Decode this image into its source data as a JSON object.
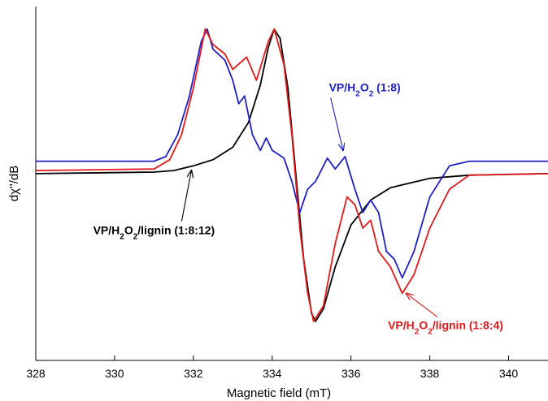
{
  "chart_data": {
    "type": "line",
    "xlabel": "Magnetic field (mT)",
    "ylabel": "dχ''/dB",
    "xlim": [
      328,
      341
    ],
    "ylim": [
      -1,
      1
    ],
    "x_ticks": [
      "328",
      "330",
      "332",
      "334",
      "336",
      "338",
      "340"
    ],
    "y_ticks_shown": false,
    "grid": false,
    "legend": "none",
    "colors": {
      "black": "#000000",
      "blue": "#1f1fc8",
      "red": "#e31a1a"
    },
    "series": [
      {
        "color": "#000000",
        "points": [
          [
            328.0,
            0.05
          ],
          [
            331.0,
            0.06
          ],
          [
            331.5,
            0.07
          ],
          [
            332.0,
            0.1
          ],
          [
            332.5,
            0.14
          ],
          [
            333.0,
            0.22
          ],
          [
            333.4,
            0.38
          ],
          [
            333.7,
            0.62
          ],
          [
            333.9,
            0.86
          ],
          [
            334.05,
            0.98
          ],
          [
            334.2,
            0.92
          ],
          [
            334.4,
            0.6
          ],
          [
            334.6,
            0.05
          ],
          [
            334.8,
            -0.5
          ],
          [
            335.0,
            -0.85
          ],
          [
            335.1,
            -0.9
          ],
          [
            335.3,
            -0.82
          ],
          [
            335.6,
            -0.55
          ],
          [
            336.0,
            -0.28
          ],
          [
            336.5,
            -0.12
          ],
          [
            337.0,
            -0.04
          ],
          [
            338.0,
            0.02
          ],
          [
            339.0,
            0.04
          ],
          [
            341.0,
            0.05
          ]
        ]
      },
      {
        "color": "#1f1fc8",
        "points": [
          [
            328.0,
            0.13
          ],
          [
            331.0,
            0.13
          ],
          [
            331.3,
            0.16
          ],
          [
            331.6,
            0.3
          ],
          [
            331.9,
            0.55
          ],
          [
            332.2,
            0.9
          ],
          [
            332.35,
            0.98
          ],
          [
            332.5,
            0.85
          ],
          [
            332.8,
            0.78
          ],
          [
            333.0,
            0.65
          ],
          [
            333.15,
            0.5
          ],
          [
            333.3,
            0.55
          ],
          [
            333.5,
            0.3
          ],
          [
            333.7,
            0.2
          ],
          [
            333.85,
            0.28
          ],
          [
            334.0,
            0.2
          ],
          [
            334.3,
            0.15
          ],
          [
            334.5,
            0.0
          ],
          [
            334.7,
            -0.2
          ],
          [
            334.9,
            -0.05
          ],
          [
            335.1,
            0.0
          ],
          [
            335.4,
            0.15
          ],
          [
            335.6,
            0.08
          ],
          [
            335.85,
            0.16
          ],
          [
            336.1,
            -0.05
          ],
          [
            336.3,
            -0.2
          ],
          [
            336.5,
            -0.12
          ],
          [
            336.7,
            -0.2
          ],
          [
            336.9,
            -0.45
          ],
          [
            337.1,
            -0.5
          ],
          [
            337.3,
            -0.62
          ],
          [
            337.6,
            -0.45
          ],
          [
            338.0,
            -0.1
          ],
          [
            338.5,
            0.1
          ],
          [
            339.0,
            0.13
          ],
          [
            341.0,
            0.13
          ]
        ]
      },
      {
        "color": "#e31a1a",
        "points": [
          [
            328.0,
            0.07
          ],
          [
            331.0,
            0.08
          ],
          [
            331.4,
            0.14
          ],
          [
            331.7,
            0.3
          ],
          [
            332.0,
            0.6
          ],
          [
            332.3,
            0.98
          ],
          [
            332.5,
            0.88
          ],
          [
            332.8,
            0.82
          ],
          [
            333.0,
            0.72
          ],
          [
            333.35,
            0.8
          ],
          [
            333.6,
            0.65
          ],
          [
            333.9,
            0.9
          ],
          [
            334.05,
            0.98
          ],
          [
            334.3,
            0.75
          ],
          [
            334.5,
            0.3
          ],
          [
            334.7,
            -0.3
          ],
          [
            334.9,
            -0.72
          ],
          [
            335.05,
            -0.9
          ],
          [
            335.3,
            -0.8
          ],
          [
            335.6,
            -0.4
          ],
          [
            335.9,
            -0.1
          ],
          [
            336.1,
            -0.15
          ],
          [
            336.3,
            -0.3
          ],
          [
            336.5,
            -0.25
          ],
          [
            336.7,
            -0.45
          ],
          [
            337.0,
            -0.55
          ],
          [
            337.3,
            -0.72
          ],
          [
            337.6,
            -0.6
          ],
          [
            338.0,
            -0.3
          ],
          [
            338.5,
            -0.05
          ],
          [
            339.0,
            0.04
          ],
          [
            341.0,
            0.05
          ]
        ]
      }
    ],
    "annotations": [
      {
        "id": "blue",
        "color": "#1f1fc8",
        "label_x": 336.35,
        "label_y": 0.58,
        "arrow_x": 335.8,
        "arrow_y": 0.2,
        "parts": [
          [
            "VP/H",
            "n"
          ],
          [
            "2",
            "sub"
          ],
          [
            "O",
            "n"
          ],
          [
            "2",
            "sub"
          ],
          [
            " (1:8)",
            "n"
          ]
        ]
      },
      {
        "id": "black",
        "color": "#000000",
        "label_x": 331.0,
        "label_y": -0.34,
        "arrow_x": 331.95,
        "arrow_y": 0.07,
        "parts": [
          [
            "VP/H",
            "n"
          ],
          [
            "2",
            "sub"
          ],
          [
            "O",
            "n"
          ],
          [
            "2",
            "sub"
          ],
          [
            "/lignin  (1:8:12)",
            "n"
          ]
        ]
      },
      {
        "id": "red",
        "color": "#e31a1a",
        "label_x": 338.4,
        "label_y": -0.95,
        "arrow_x": 337.4,
        "arrow_y": -0.72,
        "parts": [
          [
            "VP/H",
            "n"
          ],
          [
            "2",
            "sub"
          ],
          [
            "O",
            "n"
          ],
          [
            "2",
            "sub"
          ],
          [
            "/lignin  (1:8:4)",
            "n"
          ]
        ]
      }
    ]
  }
}
